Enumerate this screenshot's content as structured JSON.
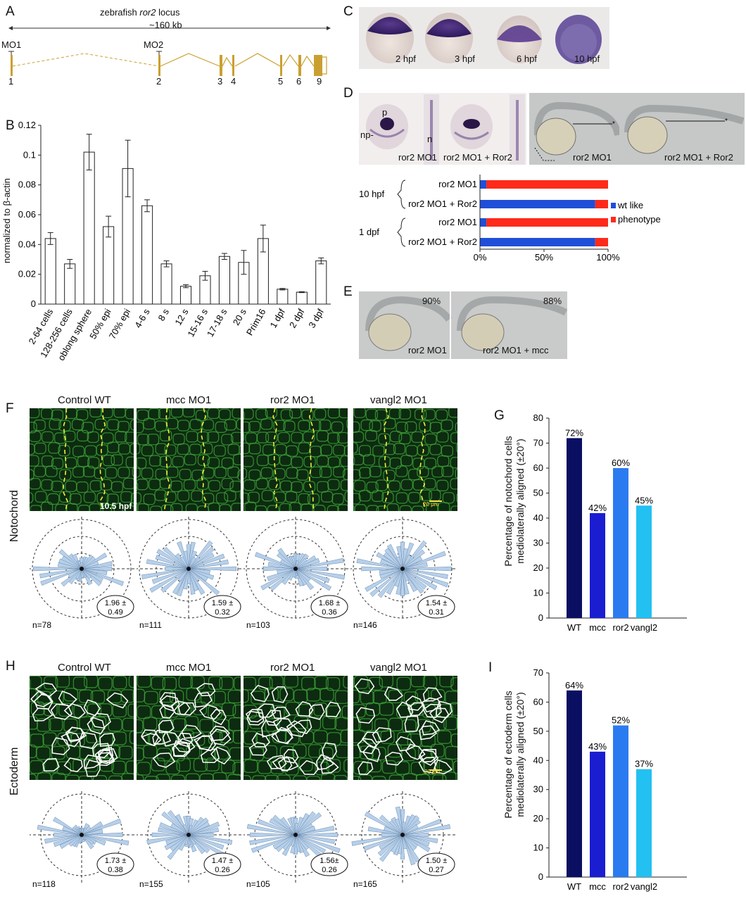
{
  "panels": {
    "A": "A",
    "B": "B",
    "C": "C",
    "D": "D",
    "E": "E",
    "F": "F",
    "G": "G",
    "H": "H",
    "I": "I"
  },
  "a": {
    "title_prefix": "zebrafish ",
    "title_gene": "ror2",
    "title_suffix": " locus",
    "size": "~160 kb",
    "mo1": "MO1",
    "mo2": "MO2",
    "exons": [
      "1",
      "2",
      "3",
      "4",
      "5",
      "6",
      "9"
    ]
  },
  "c": {
    "stages": [
      "2 hpf",
      "3 hpf",
      "6 hpf",
      "10 hpf"
    ]
  },
  "d": {
    "labels": {
      "p": "p",
      "n": "n",
      "np": "np-"
    },
    "captions": [
      "ror2 MO1",
      "ror2 MO1 + Ror2",
      "ror2 MO1",
      "ror2 MO1 + Ror2"
    ],
    "groups": [
      "10 hpf",
      "1 dpf"
    ],
    "legend": [
      "wt like",
      "phenotype"
    ],
    "colors": {
      "wt": "#1f4fd8",
      "phen": "#ff2a1a"
    }
  },
  "e": {
    "captions": [
      "ror2 MO1",
      "ror2 MO1 + mcc"
    ],
    "pcts": [
      "90%",
      "88%"
    ]
  },
  "f": {
    "side": "Notochord",
    "cols": [
      "Control WT",
      "mcc MO1",
      "ror2 MO1",
      "vangl2 MO1"
    ],
    "timestamp": "10.5 hpf",
    "scale": "20 μm",
    "stats": [
      {
        "mean": "1.96 ±",
        "sd": "0.49",
        "n": "n=78"
      },
      {
        "mean": "1.59 ±",
        "sd": "0.32",
        "n": "n=111"
      },
      {
        "mean": "1.68 ±",
        "sd": "0.36",
        "n": "n=103"
      },
      {
        "mean": "1.54 ±",
        "sd": "0.31",
        "n": "n=146"
      }
    ]
  },
  "h": {
    "side": "Ectoderm",
    "cols": [
      "Control WT",
      "mcc MO1",
      "ror2 MO1",
      "vangl2 MO1"
    ],
    "scale": "20 μm",
    "stats": [
      {
        "mean": "1.73 ±",
        "sd": "0.38",
        "n": "n=118"
      },
      {
        "mean": "1.47 ±",
        "sd": "0.26",
        "n": "n=155"
      },
      {
        "mean": "1.56±",
        "sd": "0.26",
        "n": "n=105"
      },
      {
        "mean": "1.50 ±",
        "sd": "0.27",
        "n": "n=165"
      }
    ]
  },
  "chart_data": [
    {
      "type": "bar",
      "panel": "B",
      "ylabel": "normalized to β-actin",
      "categories": [
        "2-64 cells",
        "128-256 cells",
        "oblong sphere",
        "50% epi",
        "70% epi",
        "4-6 s",
        "8 s",
        "12 s",
        "15-16 s",
        "17-18 s",
        "20 s",
        "Prim16",
        "1 dpf",
        "2 dpf",
        "3 dpf"
      ],
      "values": [
        0.044,
        0.027,
        0.102,
        0.052,
        0.091,
        0.066,
        0.027,
        0.012,
        0.019,
        0.032,
        0.028,
        0.044,
        0.01,
        0.008,
        0.029
      ],
      "errors": [
        0.004,
        0.003,
        0.012,
        0.007,
        0.019,
        0.004,
        0.002,
        0.001,
        0.003,
        0.002,
        0.008,
        0.009,
        0.0005,
        0.0003,
        0.002
      ],
      "ylim": [
        0,
        0.12
      ],
      "yticks": [
        "0",
        "0.02",
        "0.04",
        "0.06",
        "0.08",
        "0.1",
        "0.12"
      ]
    },
    {
      "type": "bar",
      "panel": "D",
      "orientation": "horizontal",
      "categories": [
        "ror2 MO1",
        "ror2 MO1 + Ror2",
        "ror2 MO1",
        "ror2 MO1 + Ror2"
      ],
      "series": [
        {
          "name": "wt like",
          "values": [
            5,
            90,
            5,
            90
          ]
        },
        {
          "name": "phenotype",
          "values": [
            95,
            10,
            95,
            10
          ]
        }
      ],
      "xlim": [
        0,
        100
      ],
      "xticks": [
        "0%",
        "50%",
        "100%"
      ]
    },
    {
      "type": "bar",
      "panel": "G",
      "ylabel": "Percentage of notochord cells mediolaterally aligned (±20°)",
      "categories": [
        "WT",
        "mcc",
        "ror2",
        "vangl2"
      ],
      "values": [
        72,
        42,
        60,
        45
      ],
      "labels": [
        "72%",
        "42%",
        "60%",
        "45%"
      ],
      "ylim": [
        0,
        80
      ],
      "yticks": [
        "0",
        "10",
        "20",
        "30",
        "40",
        "50",
        "60",
        "70",
        "80"
      ],
      "colors": [
        "#0b0f62",
        "#1a1ed0",
        "#2b7bf0",
        "#23c0f2"
      ]
    },
    {
      "type": "bar",
      "panel": "I",
      "ylabel": "Percentage of ectoderm cells mediolaterally aligned (±20°)",
      "categories": [
        "WT",
        "mcc",
        "ror2",
        "vangl2"
      ],
      "values": [
        64,
        43,
        52,
        37
      ],
      "labels": [
        "64%",
        "43%",
        "52%",
        "37%"
      ],
      "ylim": [
        0,
        70
      ],
      "yticks": [
        "0",
        "10",
        "20",
        "30",
        "40",
        "50",
        "60",
        "70"
      ],
      "colors": [
        "#0b0f62",
        "#1a1ed0",
        "#2b7bf0",
        "#23c0f2"
      ]
    }
  ]
}
